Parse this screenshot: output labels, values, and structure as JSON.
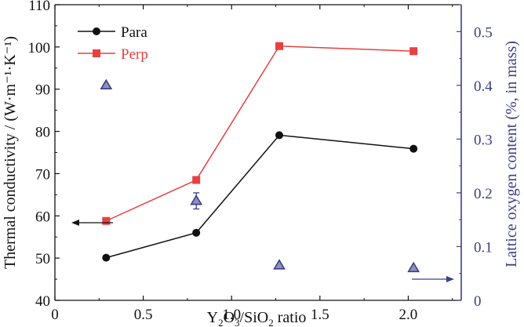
{
  "chart_data": {
    "type": "line",
    "xlabel": "Y2O3/SiO2 ratio",
    "xlim": [
      0,
      2.3
    ],
    "xticks": [
      "0",
      "0.5",
      "1.0",
      "1.5",
      "2.0"
    ],
    "ylabel_left": "Thermal conductivity / (W·m⁻¹·K⁻¹)",
    "ylim_left": [
      40,
      110
    ],
    "yticks_left": [
      "40",
      "50",
      "60",
      "70",
      "80",
      "90",
      "100",
      "110"
    ],
    "ylabel_right": "Lattice oxygen content (%, in mass)",
    "ylim_right": [
      0,
      0.55
    ],
    "yticks_right": [
      "0",
      "0.1",
      "0.2",
      "0.3",
      "0.4",
      "0.5"
    ],
    "legend_position": "top-left",
    "series": [
      {
        "name": "Para",
        "axis": "left",
        "marker": "circle",
        "color": "#111111",
        "x": [
          0.29,
          0.8,
          1.27,
          2.03
        ],
        "y": [
          50.1,
          56.0,
          79.1,
          75.9
        ]
      },
      {
        "name": "Perp",
        "axis": "left",
        "marker": "square",
        "color": "#e84040",
        "x": [
          0.29,
          0.8,
          1.27,
          2.03
        ],
        "y": [
          58.8,
          68.5,
          100.2,
          99.0
        ]
      },
      {
        "axis": "right",
        "marker": "triangle",
        "color": "#3b3f86",
        "x": [
          0.29,
          0.8,
          1.27,
          2.03
        ],
        "y": [
          0.4,
          0.185,
          0.065,
          0.06
        ],
        "err": [
          0.0,
          0.015,
          0.0,
          0.0
        ]
      }
    ],
    "arrows": [
      {
        "points_to": "left-axis",
        "color": "#111111"
      },
      {
        "points_to": "right-axis",
        "color": "#3b3f86"
      }
    ]
  },
  "labels": {
    "xlabel_main": "Y",
    "xlabel_sub1": "2",
    "xlabel_mid": "O",
    "xlabel_sub2": "3",
    "xlabel_mid2": "/SiO",
    "xlabel_sub3": "2",
    "xlabel_tail": " ratio"
  }
}
